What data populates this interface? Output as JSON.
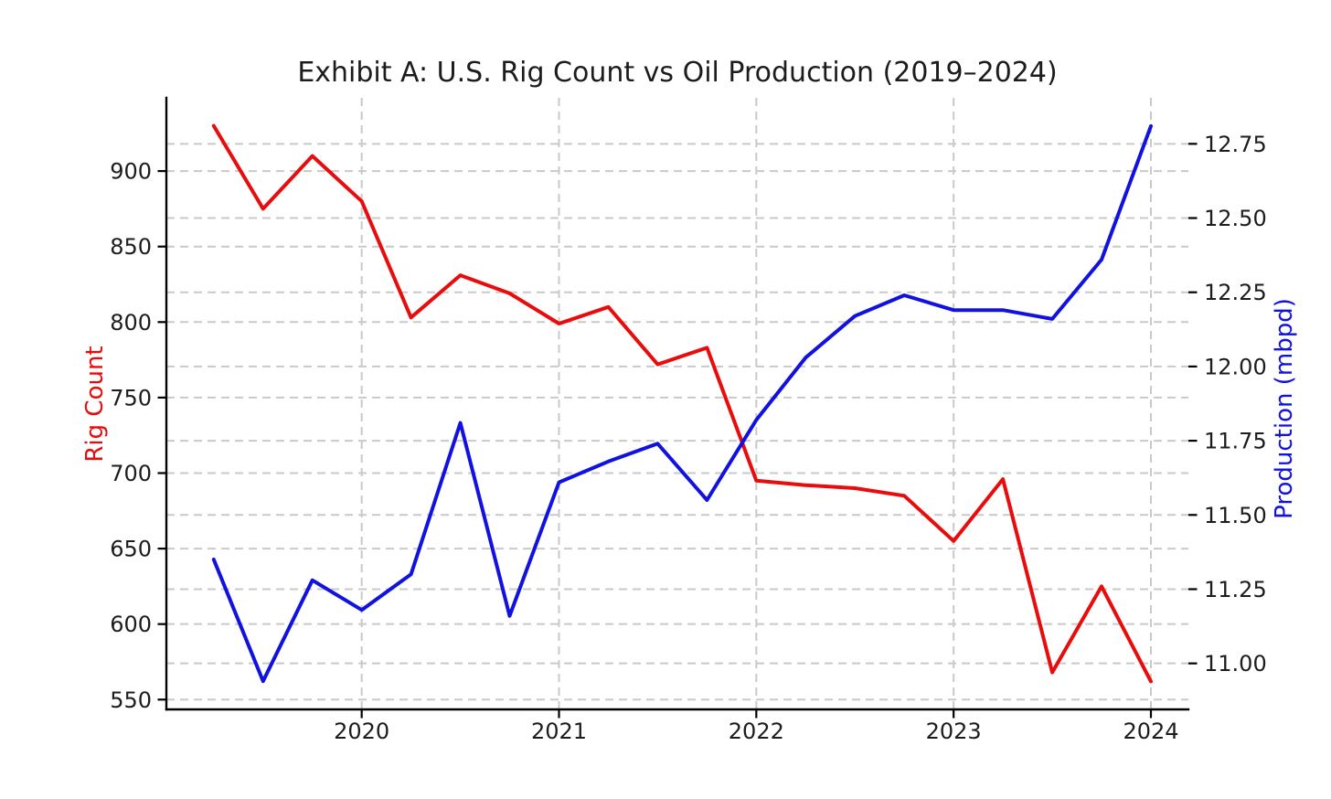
{
  "figure": {
    "background": "#ffffff",
    "text_color": "#1c1c1c",
    "grid_color": "#c9c9c9",
    "spine_color": "#000000"
  },
  "chart_data": {
    "type": "line",
    "title": "Exhibit A: U.S. Rig Count vs Oil Production (2019–2024)",
    "grid": {
      "horizontal": "both-axes-major-ticks",
      "vertical": "x-major-ticks",
      "style": "dashed",
      "on": true
    },
    "legend": "none",
    "x_axis": {
      "label": "",
      "ticks": [
        2020,
        2021,
        2022,
        2023,
        2024
      ],
      "tick_labels": [
        "2020",
        "2021",
        "2022",
        "2023",
        "2024"
      ],
      "range": [
        2019.01,
        2024.19
      ]
    },
    "left_axis": {
      "label": "Rig Count",
      "color": "#e90c0c",
      "ticks": [
        550,
        600,
        650,
        700,
        750,
        800,
        850,
        900
      ],
      "tick_labels": [
        "550",
        "600",
        "650",
        "700",
        "750",
        "800",
        "850",
        "900"
      ],
      "range": [
        543.5,
        948.5
      ]
    },
    "right_axis": {
      "label": "Production (mbpd)",
      "color": "#1111e0",
      "ticks": [
        11.0,
        11.25,
        11.5,
        11.75,
        12.0,
        12.25,
        12.5,
        12.75
      ],
      "tick_labels": [
        "11.00",
        "11.25",
        "11.50",
        "11.75",
        "12.00",
        "12.25",
        "12.50",
        "12.75"
      ],
      "range": [
        10.845,
        12.905
      ]
    },
    "x": [
      2019.25,
      2019.5,
      2019.75,
      2020.0,
      2020.25,
      2020.5,
      2020.75,
      2021.0,
      2021.25,
      2021.5,
      2021.75,
      2022.0,
      2022.25,
      2022.5,
      2022.75,
      2023.0,
      2023.25,
      2023.5,
      2023.75,
      2024.0
    ],
    "series": [
      {
        "name": "Rig Count",
        "axis": "left",
        "color": "#e90c0c",
        "values": [
          930,
          875,
          910,
          880,
          803,
          831,
          819,
          799,
          810,
          772,
          783,
          695,
          692,
          690,
          685,
          655,
          696,
          568,
          625,
          562
        ]
      },
      {
        "name": "Production (mbpd)",
        "axis": "right",
        "color": "#1111e0",
        "values": [
          11.35,
          10.94,
          11.28,
          11.18,
          11.3,
          11.81,
          11.16,
          11.61,
          11.68,
          11.74,
          11.55,
          11.82,
          12.03,
          12.17,
          12.24,
          12.19,
          12.19,
          12.16,
          12.36,
          12.81
        ]
      }
    ]
  }
}
